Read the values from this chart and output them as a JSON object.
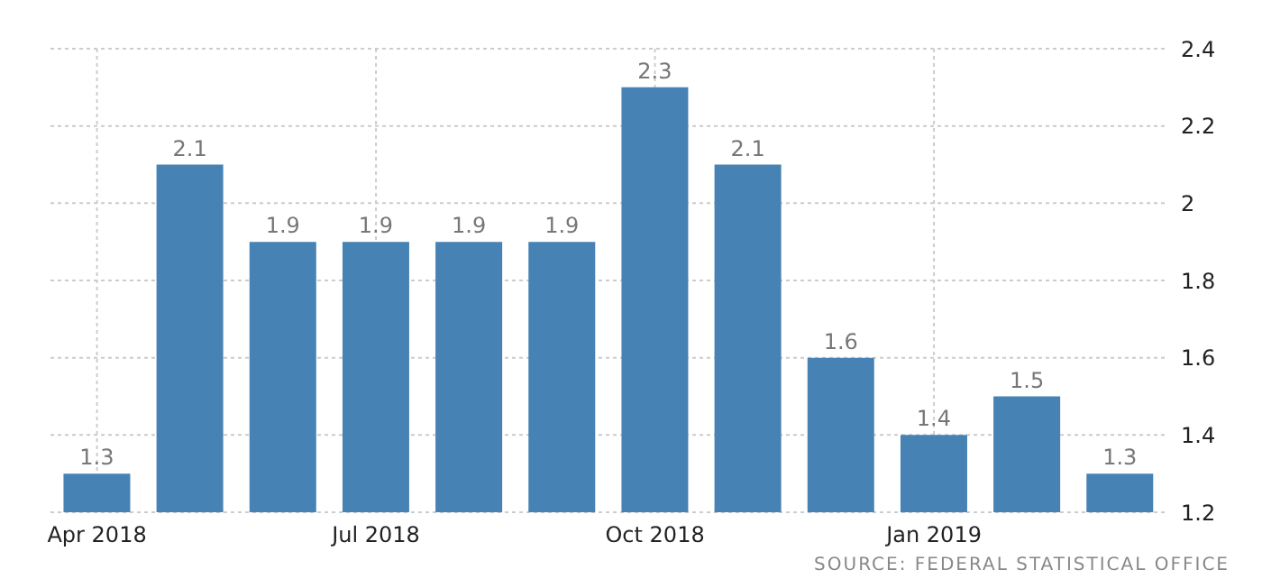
{
  "chart_data": {
    "type": "bar",
    "categories": [
      "Apr 2018",
      null,
      null,
      "Jul 2018",
      null,
      null,
      "Oct 2018",
      null,
      null,
      "Jan 2019",
      null,
      null
    ],
    "values": [
      1.3,
      2.1,
      1.9,
      1.9,
      1.9,
      1.9,
      2.3,
      2.1,
      1.6,
      1.4,
      1.5,
      1.3
    ],
    "color": "#4682b4",
    "ylim": [
      1.2,
      2.4
    ],
    "yticks": [
      1.2,
      1.4,
      1.6,
      1.8,
      2,
      2.2,
      2.4
    ],
    "grid": true,
    "data_labels": true,
    "annotations": [
      "SOURCE: FEDERAL STATISTICAL OFFICE"
    ]
  }
}
